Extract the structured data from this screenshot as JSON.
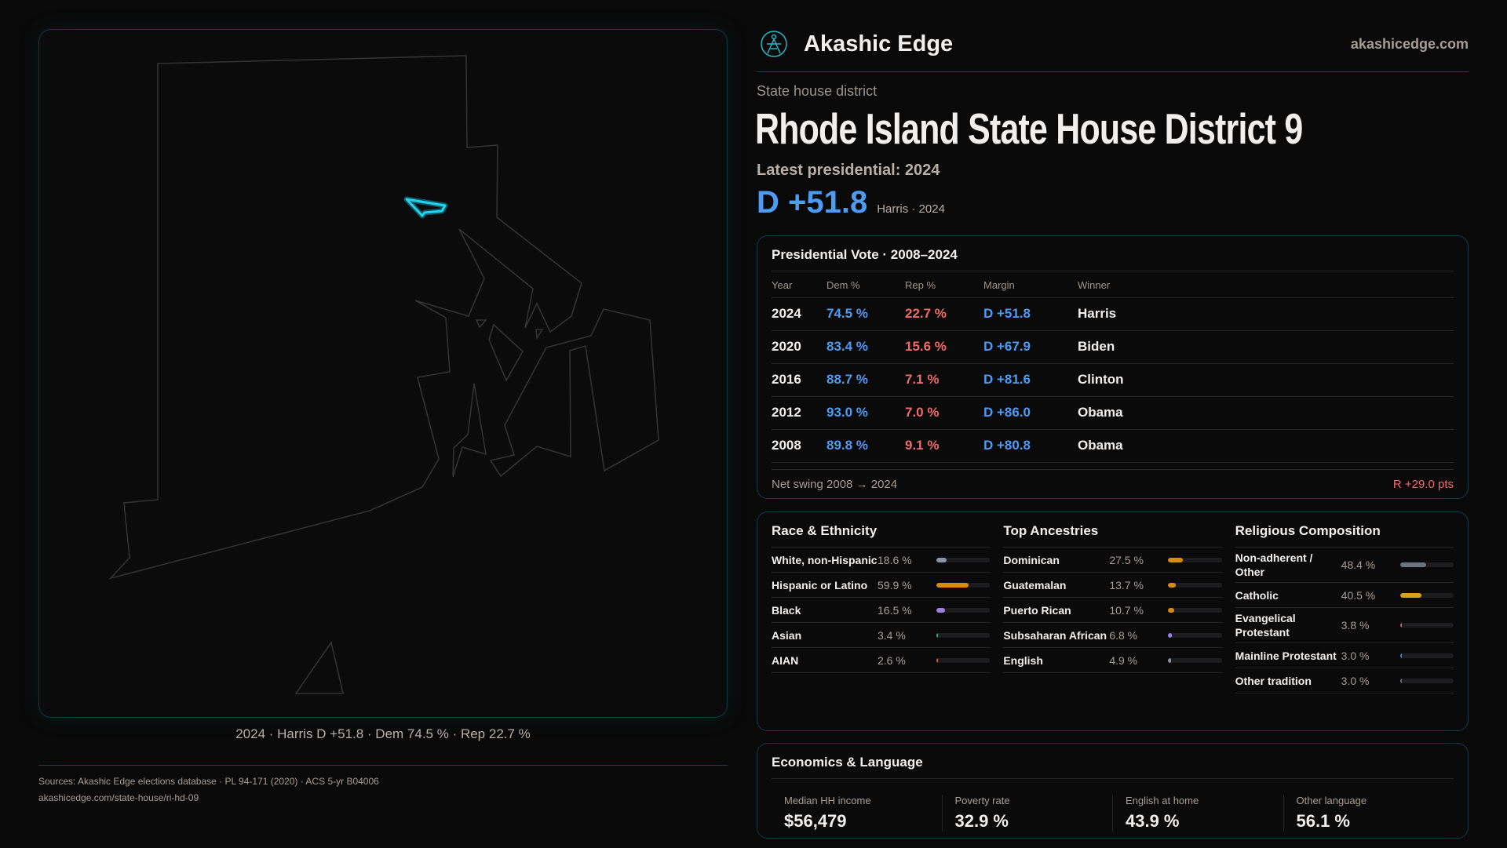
{
  "brand": {
    "name": "Akashic Edge",
    "site": "akashicedge.com",
    "logo_icon": "akashic-edge-logo-icon"
  },
  "kicker": "State house district",
  "title": "Rhode Island State House District 9",
  "latest": "Latest presidential: 2024",
  "margin": "D +51.8",
  "margin_sub": "Harris · 2024",
  "map": {
    "caption": "2024 · Harris D +51.8 · Dem 74.5 % · Rep 22.7 %",
    "highlight_color": "#22d3ee"
  },
  "presidential": {
    "title": "Presidential Vote · 2008–2024",
    "headers": [
      "Year",
      "Dem %",
      "Rep %",
      "Margin",
      "Winner"
    ],
    "rows": [
      [
        "2024",
        "74.5 %",
        "22.7 %",
        "D +51.8",
        "Harris"
      ],
      [
        "2020",
        "83.4 %",
        "15.6 %",
        "D +67.9",
        "Biden"
      ],
      [
        "2016",
        "88.7 %",
        "7.1 %",
        "D +81.6",
        "Clinton"
      ],
      [
        "2012",
        "93.0 %",
        "7.0 %",
        "D +86.0",
        "Obama"
      ],
      [
        "2008",
        "89.8 %",
        "9.1 %",
        "D +80.8",
        "Obama"
      ]
    ],
    "swing_label": "Net swing 2008 → 2024",
    "swing_value": "R +29.0 pts"
  },
  "demographics": [
    {
      "title": "Race & Ethnicity",
      "items": [
        {
          "name": "White, non-Hispanic",
          "pct": "18.6 %",
          "value": 18.6,
          "color": "#8a93a6"
        },
        {
          "name": "Hispanic or Latino",
          "pct": "59.9 %",
          "value": 59.9,
          "color": "#d98c0b"
        },
        {
          "name": "Black",
          "pct": "16.5 %",
          "value": 16.5,
          "color": "#9b7fe0"
        },
        {
          "name": "Asian",
          "pct": "3.4 %",
          "value": 3.4,
          "color": "#2bb38a"
        },
        {
          "name": "AIAN",
          "pct": "2.6 %",
          "value": 2.6,
          "color": "#c7702a"
        }
      ]
    },
    {
      "title": "Top Ancestries",
      "items": [
        {
          "name": "Dominican",
          "pct": "27.5 %",
          "value": 27.5,
          "color": "#d98c0b"
        },
        {
          "name": "Guatemalan",
          "pct": "13.7 %",
          "value": 13.7,
          "color": "#d98c0b"
        },
        {
          "name": "Puerto Rican",
          "pct": "10.7 %",
          "value": 10.7,
          "color": "#d98c0b"
        },
        {
          "name": "Subsaharan African",
          "pct": "6.8 %",
          "value": 6.8,
          "color": "#9b7fe0"
        },
        {
          "name": "English",
          "pct": "4.9 %",
          "value": 4.9,
          "color": "#8a93a6"
        }
      ]
    },
    {
      "title": "Religious Composition",
      "items": [
        {
          "name": "Non-adherent / Other",
          "pct": "48.4 %",
          "value": 48.4,
          "color": "#6b7280"
        },
        {
          "name": "Catholic",
          "pct": "40.5 %",
          "value": 40.5,
          "color": "#d4a020"
        },
        {
          "name": "Evangelical Protestant",
          "pct": "3.8 %",
          "value": 3.8,
          "color": "#e05a5a"
        },
        {
          "name": "Mainline Protestant",
          "pct": "3.0 %",
          "value": 3.0,
          "color": "#3b82f6"
        },
        {
          "name": "Other tradition",
          "pct": "3.0 %",
          "value": 3.0,
          "color": "#6b7280"
        }
      ]
    }
  ],
  "economics": {
    "title": "Economics & Language",
    "stats": [
      {
        "label": "Median HH income",
        "value": "$56,479"
      },
      {
        "label": "Poverty rate",
        "value": "32.9 %"
      },
      {
        "label": "English at home",
        "value": "43.9 %"
      },
      {
        "label": "Other language",
        "value": "56.1 %"
      }
    ]
  },
  "footer": {
    "sources": "Sources: Akashic Edge elections database · PL 94-171 (2020) · ACS 5-yr B04006",
    "url": "akashicedge.com/state-house/ri-hd-09"
  }
}
